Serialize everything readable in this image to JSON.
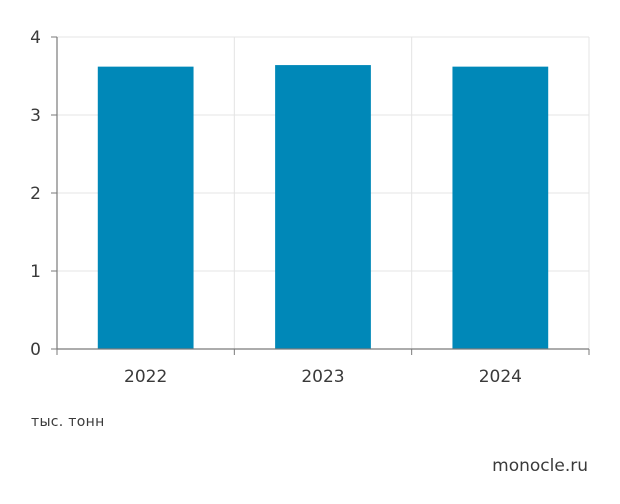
{
  "chart_data": {
    "type": "bar",
    "categories": [
      "2022",
      "2023",
      "2024"
    ],
    "values": [
      3.62,
      3.64,
      3.62
    ],
    "ylim": [
      0,
      4
    ],
    "yticks": [
      "0",
      "1",
      "2",
      "3",
      "4"
    ],
    "grid": true,
    "unit_label": "тыс. тонн",
    "bar_color": "#0088b8",
    "grid_color": "#e4e4e4",
    "axis_color": "#7a7a7a"
  },
  "source": "monocle.ru"
}
